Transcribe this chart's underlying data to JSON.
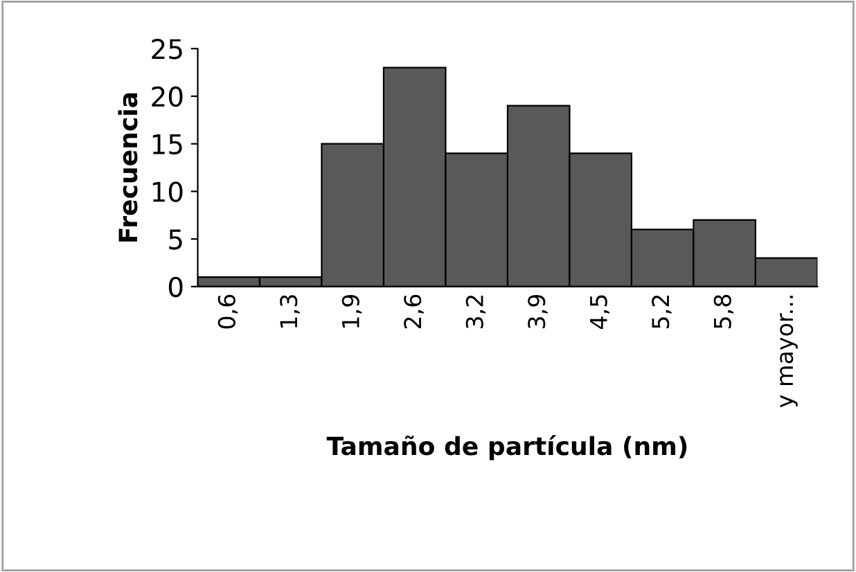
{
  "chart_data": {
    "type": "bar",
    "xlabel": "Tamaño de partícula (nm)",
    "ylabel": "Frecuencia",
    "categories": [
      "0,6",
      "1,3",
      "1,9",
      "2,6",
      "3,2",
      "3,9",
      "4,5",
      "5,2",
      "5,8",
      "y mayor..."
    ],
    "values": [
      1,
      1,
      15,
      23,
      14,
      19,
      14,
      6,
      7,
      3
    ],
    "color": "#595959",
    "ylim": [
      0,
      25
    ],
    "yticks": [
      0,
      5,
      10,
      15,
      20,
      25
    ],
    "grid": false,
    "legend": false
  }
}
